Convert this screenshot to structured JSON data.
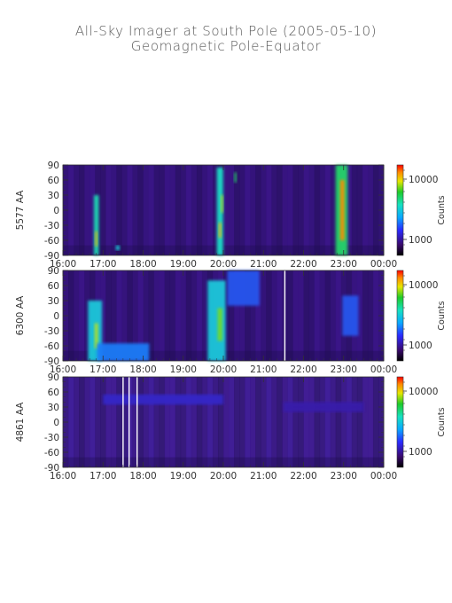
{
  "title": "All-Sky Imager at South Pole (2005-05-10)",
  "subtitle": "Geomagnetic Pole-Equator",
  "chart_data": [
    {
      "type": "heatmap",
      "ylabel": "5577 AA",
      "x_ticks": [
        "16:00",
        "17:00",
        "18:00",
        "19:00",
        "20:00",
        "21:00",
        "22:00",
        "23:00",
        "00:00"
      ],
      "y_ticks": [
        90,
        60,
        30,
        0,
        -30,
        -60,
        -90
      ],
      "colorbar_label": "Counts",
      "colorbar_ticks": [
        "10000",
        "1000"
      ],
      "gap_lines": [],
      "features": [
        {
          "t": "16:50",
          "width_h": 0.12,
          "lat": [
            -90,
            30
          ],
          "level": 0.62
        },
        {
          "t": "16:50",
          "width_h": 0.05,
          "lat": [
            -72,
            -42
          ],
          "level": 0.95
        },
        {
          "t": "17:22",
          "width_h": 0.09,
          "lat": [
            -80,
            -70
          ],
          "level": 0.55
        },
        {
          "t": "19:55",
          "width_h": 0.16,
          "lat": [
            -90,
            85
          ],
          "level": 0.6
        },
        {
          "t": "19:55",
          "width_h": 0.06,
          "lat": [
            -55,
            -25
          ],
          "level": 0.95
        },
        {
          "t": "19:58",
          "width_h": 0.05,
          "lat": [
            -5,
            30
          ],
          "level": 0.85
        },
        {
          "t": "20:18",
          "width_h": 0.05,
          "lat": [
            55,
            75
          ],
          "level": 0.7
        },
        {
          "t": "22:57",
          "width_h": 0.3,
          "lat": [
            -90,
            90
          ],
          "level": 0.7
        },
        {
          "t": "22:58",
          "width_h": 0.1,
          "lat": [
            -60,
            60
          ],
          "level": 1.0
        }
      ]
    },
    {
      "type": "heatmap",
      "ylabel": "6300 AA",
      "x_ticks": [
        "16:00",
        "17:00",
        "18:00",
        "19:00",
        "20:00",
        "21:00",
        "22:00",
        "23:00",
        "00:00"
      ],
      "y_ticks": [
        90,
        60,
        30,
        0,
        -30,
        -60,
        -90
      ],
      "colorbar_label": "Counts",
      "colorbar_ticks": [
        "10000",
        "1000"
      ],
      "gap_lines": [
        "21:32"
      ],
      "features": [
        {
          "t": "16:48",
          "width_h": 0.35,
          "lat": [
            -90,
            30
          ],
          "level": 0.55
        },
        {
          "t": "16:50",
          "width_h": 0.08,
          "lat": [
            -65,
            -15
          ],
          "level": 0.85
        },
        {
          "t": "17:30",
          "width_h": 1.3,
          "lat": [
            -90,
            -55
          ],
          "level": 0.4
        },
        {
          "t": "19:50",
          "width_h": 0.45,
          "lat": [
            -90,
            70
          ],
          "level": 0.55
        },
        {
          "t": "19:55",
          "width_h": 0.12,
          "lat": [
            -50,
            15
          ],
          "level": 0.8
        },
        {
          "t": "20:30",
          "width_h": 0.8,
          "lat": [
            20,
            90
          ],
          "level": 0.35
        },
        {
          "t": "23:10",
          "width_h": 0.4,
          "lat": [
            -40,
            40
          ],
          "level": 0.35
        }
      ]
    },
    {
      "type": "heatmap",
      "ylabel": "4861 AA",
      "x_ticks": [
        "16:00",
        "17:00",
        "18:00",
        "19:00",
        "20:00",
        "21:00",
        "22:00",
        "23:00",
        "00:00"
      ],
      "y_ticks": [
        90,
        60,
        30,
        0,
        -30,
        -60,
        -90
      ],
      "colorbar_label": "Counts",
      "colorbar_ticks": [
        "10000",
        "1000"
      ],
      "gap_lines": [
        "17:30",
        "17:39",
        "17:51"
      ],
      "features": [
        {
          "t": "18:30",
          "width_h": 3.0,
          "lat": [
            35,
            55
          ],
          "level": 0.25
        },
        {
          "t": "22:30",
          "width_h": 2.0,
          "lat": [
            20,
            40
          ],
          "level": 0.2
        }
      ]
    }
  ]
}
